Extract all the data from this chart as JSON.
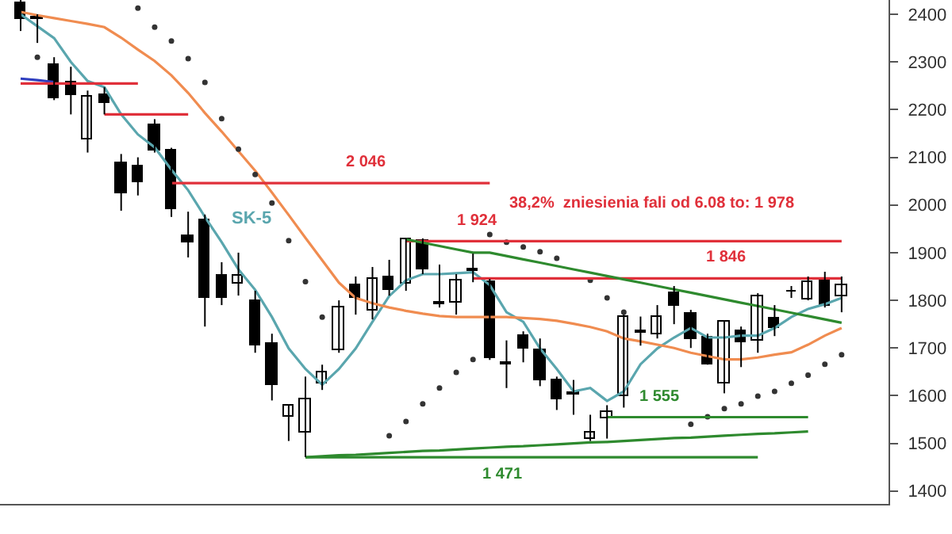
{
  "chart_data": {
    "type": "candlestick",
    "categories": [
      null,
      null,
      null,
      null,
      null,
      null,
      null,
      null,
      null,
      null,
      null,
      null,
      null,
      null,
      null,
      null,
      null,
      null,
      null,
      null,
      null,
      null,
      null,
      null,
      null,
      null,
      null,
      null,
      null,
      null,
      null,
      null,
      null,
      null,
      null,
      null,
      null,
      null,
      null,
      null,
      null,
      null,
      null,
      null,
      null,
      null,
      null,
      null,
      null,
      null
    ],
    "ohlc": [
      [
        2425,
        2430,
        2365,
        2390
      ],
      [
        2393,
        2400,
        2340,
        2390
      ],
      [
        2294,
        2310,
        2220,
        2224
      ],
      [
        2257,
        2290,
        2190,
        2230
      ],
      [
        2137,
        2240,
        2110,
        2227
      ],
      [
        2230,
        2247,
        2190,
        2214
      ],
      [
        2088,
        2107,
        1988,
        2025
      ],
      [
        2080,
        2100,
        2020,
        2048
      ],
      [
        2167,
        2180,
        2110,
        2114
      ],
      [
        2114,
        2120,
        1975,
        1991
      ],
      [
        1935,
        1986,
        1890,
        1922
      ],
      [
        1968,
        1980,
        1745,
        1805
      ],
      [
        1852,
        1880,
        1790,
        1805
      ],
      [
        1834,
        1900,
        1810,
        1852
      ],
      [
        1800,
        1820,
        1690,
        1706
      ],
      [
        1710,
        1730,
        1590,
        1623
      ],
      [
        1555,
        1580,
        1505,
        1580
      ],
      [
        1523,
        1640,
        1471,
        1593
      ],
      [
        1625,
        1665,
        1612,
        1650
      ],
      [
        1696,
        1800,
        1690,
        1786
      ],
      [
        1832,
        1850,
        1770,
        1805
      ],
      [
        1780,
        1870,
        1760,
        1845
      ],
      [
        1849,
        1885,
        1810,
        1822
      ],
      [
        1835,
        1930,
        1820,
        1928
      ],
      [
        1925,
        1930,
        1855,
        1865
      ],
      [
        1795,
        1875,
        1785,
        1792
      ],
      [
        1795,
        1855,
        1770,
        1842
      ],
      [
        1866,
        1898,
        1838,
        1862
      ],
      [
        1839,
        1845,
        1675,
        1679
      ],
      [
        1669,
        1716,
        1616,
        1666
      ],
      [
        1726,
        1735,
        1670,
        1699
      ],
      [
        1696,
        1720,
        1620,
        1633
      ],
      [
        1633,
        1640,
        1570,
        1593
      ],
      [
        1606,
        1633,
        1560,
        1603
      ],
      [
        1510,
        1560,
        1505,
        1523
      ],
      [
        1553,
        1580,
        1510,
        1566
      ],
      [
        1600,
        1770,
        1575,
        1766
      ],
      [
        1735,
        1766,
        1705,
        1732
      ],
      [
        1730,
        1790,
        1720,
        1766
      ],
      [
        1815,
        1830,
        1750,
        1789
      ],
      [
        1772,
        1780,
        1700,
        1719
      ],
      [
        1722,
        1730,
        1665,
        1666
      ],
      [
        1626,
        1756,
        1605,
        1756
      ],
      [
        1735,
        1745,
        1660,
        1712
      ],
      [
        1716,
        1815,
        1690,
        1808
      ],
      [
        1762,
        1790,
        1725,
        1742
      ],
      [
        1818,
        1830,
        1805,
        1820
      ],
      [
        1802,
        1850,
        1800,
        1839
      ],
      [
        1845,
        1860,
        1785,
        1789
      ],
      [
        1809,
        1850,
        1775,
        1832
      ]
    ],
    "series": [
      {
        "name": "SK-5",
        "type": "line",
        "color": "#5aa6ae",
        "values": [
          2400,
          2375,
          2350,
          2300,
          2260,
          2247,
          2190,
          2148,
          2121,
          2074,
          2031,
          1975,
          1922,
          1865,
          1822,
          1765,
          1699,
          1656,
          1623,
          1656,
          1699,
          1755,
          1809,
          1842,
          1855,
          1855,
          1857,
          1859,
          1832,
          1775,
          1755,
          1699,
          1656,
          1609,
          1616,
          1589,
          1609,
          1666,
          1699,
          1722,
          1742,
          1722,
          1722,
          1726,
          1726,
          1742,
          1765,
          1782,
          1792,
          1805
        ]
      },
      {
        "type": "line",
        "color": "#f08c50",
        "values": [
          2405,
          2398,
          2392,
          2386,
          2380,
          2373,
          2351,
          2326,
          2302,
          2272,
          2235,
          2193,
          2154,
          2113,
          2072,
          2026,
          1979,
          1931,
          1884,
          1837,
          1805,
          1794,
          1785,
          1778,
          1772,
          1767,
          1765,
          1765,
          1765,
          1765,
          1763,
          1761,
          1757,
          1751,
          1744,
          1735,
          1720,
          1714,
          1707,
          1700,
          1690,
          1683,
          1676,
          1676,
          1680,
          1686,
          1691,
          1707,
          1726,
          1742
        ]
      },
      {
        "type": "scatter",
        "marker": "circle",
        "color": "#333333",
        "values": [
          null,
          2310,
          null,
          null,
          null,
          null,
          null,
          2413,
          2373,
          2344,
          2307,
          2257,
          2181,
          2117,
          2064,
          2004,
          1925,
          1839,
          1765,
          null,
          null,
          null,
          1516,
          1546,
          1583,
          1616,
          1649,
          1676,
          1938,
          1922,
          1912,
          1902,
          1888,
          null,
          1842,
          1805,
          1775,
          null,
          null,
          null,
          1540,
          1556,
          1573,
          1583,
          1599,
          1609,
          1626,
          1643,
          1666,
          1686
        ]
      },
      {
        "type": "line",
        "color": "#2f3fc0",
        "values": [
          2265,
          2262,
          2258,
          null,
          null,
          null,
          null,
          null,
          null,
          null,
          null,
          null,
          null,
          null,
          null,
          null,
          null,
          null,
          null,
          null,
          null,
          null,
          null,
          null,
          null,
          null,
          null,
          null,
          null,
          null,
          null,
          null,
          null,
          null,
          null,
          null,
          null,
          null,
          null,
          null,
          null,
          null,
          null,
          null,
          null,
          null,
          null,
          null,
          null,
          null
        ]
      },
      {
        "type": "line",
        "color": "#e0303a",
        "values": [
          2255,
          2255,
          2255,
          2255,
          2255,
          2255,
          2255,
          2255,
          null,
          null,
          null,
          null,
          null,
          null,
          null,
          null,
          null,
          null,
          null,
          null,
          null,
          null,
          null,
          null,
          null,
          null,
          null,
          null,
          null,
          null,
          null,
          null,
          null,
          null,
          null,
          null,
          null,
          null,
          null,
          null,
          null,
          null,
          null,
          null,
          null,
          null,
          null,
          null,
          null,
          null
        ]
      },
      {
        "type": "line",
        "color": "#e0303a",
        "values": [
          null,
          null,
          null,
          null,
          null,
          2190,
          2190,
          2190,
          2190,
          2190,
          2190,
          null,
          null,
          null,
          null,
          null,
          null,
          null,
          null,
          null,
          null,
          null,
          null,
          null,
          null,
          null,
          null,
          null,
          null,
          null,
          null,
          null,
          null,
          null,
          null,
          null,
          null,
          null,
          null,
          null,
          null,
          null,
          null,
          null,
          null,
          null,
          null,
          null,
          null,
          null
        ]
      },
      {
        "type": "line",
        "color": "#e0303a",
        "values": [
          null,
          null,
          null,
          null,
          null,
          null,
          null,
          null,
          null,
          2046,
          2046,
          2046,
          2046,
          2046,
          2046,
          2046,
          2046,
          2046,
          2046,
          2046,
          2046,
          2046,
          2046,
          2046,
          2046,
          2046,
          2046,
          2046,
          2046,
          null,
          null,
          null,
          null,
          null,
          null,
          null,
          null,
          null,
          null,
          null,
          null,
          null,
          null,
          null,
          null,
          null,
          null,
          null,
          null,
          null
        ]
      },
      {
        "type": "line",
        "color": "#e0303a",
        "values": [
          null,
          null,
          null,
          null,
          null,
          null,
          null,
          null,
          null,
          null,
          null,
          null,
          null,
          null,
          null,
          null,
          null,
          null,
          null,
          null,
          null,
          null,
          null,
          1924,
          1924,
          1924,
          1924,
          1924,
          1924,
          1924,
          1924,
          1924,
          1924,
          1924,
          1924,
          1924,
          1924,
          1924,
          1924,
          1924,
          1924,
          1924,
          1924,
          1924,
          1924,
          1924,
          1924,
          1924,
          1924,
          1924
        ]
      },
      {
        "type": "line",
        "color": "#e0303a",
        "values": [
          null,
          null,
          null,
          null,
          null,
          null,
          null,
          null,
          null,
          null,
          null,
          null,
          null,
          null,
          null,
          null,
          null,
          null,
          null,
          null,
          null,
          null,
          null,
          null,
          null,
          null,
          null,
          1846,
          1846,
          1846,
          1846,
          1846,
          1846,
          1846,
          1846,
          1846,
          1846,
          1846,
          1846,
          1846,
          1846,
          1846,
          1846,
          1846,
          1846,
          1846,
          1846,
          1846,
          1846,
          1846
        ]
      },
      {
        "type": "line",
        "color": "#2e8a2e",
        "values": [
          null,
          null,
          null,
          null,
          null,
          null,
          null,
          null,
          null,
          null,
          null,
          null,
          null,
          null,
          null,
          null,
          null,
          null,
          null,
          null,
          null,
          null,
          null,
          1928,
          1921,
          1914,
          1907,
          1900,
          1900,
          1893,
          1886,
          1879,
          1872,
          1865,
          1858,
          1851,
          1844,
          1837,
          1830,
          1823,
          1816,
          1809,
          1802,
          1795,
          1788,
          1781,
          1774,
          1767,
          1760,
          1753
        ]
      },
      {
        "type": "line",
        "color": "#2e8a2e",
        "values": [
          null,
          null,
          null,
          null,
          null,
          null,
          null,
          null,
          null,
          null,
          null,
          null,
          null,
          null,
          null,
          null,
          null,
          1471,
          1471,
          1471,
          1471,
          1471,
          1471,
          1471,
          1471,
          1471,
          1471,
          1471,
          1471,
          1471,
          1471,
          1471,
          1471,
          1471,
          1471,
          1471,
          1471,
          1471,
          1471,
          1471,
          1471,
          1471,
          1471,
          1471,
          1471,
          null,
          null,
          null,
          null,
          null
        ]
      },
      {
        "type": "line",
        "color": "#2e8a2e",
        "values": [
          null,
          null,
          null,
          null,
          null,
          null,
          null,
          null,
          null,
          null,
          null,
          null,
          null,
          null,
          null,
          null,
          null,
          1471,
          1473,
          1475,
          1476,
          1478,
          1480,
          1482,
          1484,
          1485,
          1487,
          1489,
          1491,
          1493,
          1494,
          1496,
          1498,
          1500,
          1502,
          1503,
          1505,
          1507,
          1509,
          1511,
          1512,
          1514,
          1516,
          1518,
          1520,
          1521,
          1523,
          1525,
          null,
          null
        ]
      },
      {
        "type": "line",
        "color": "#2e8a2e",
        "values": [
          null,
          null,
          null,
          null,
          null,
          null,
          null,
          null,
          null,
          null,
          null,
          null,
          null,
          null,
          null,
          null,
          null,
          null,
          null,
          null,
          null,
          null,
          null,
          null,
          null,
          null,
          null,
          null,
          null,
          null,
          null,
          null,
          null,
          null,
          null,
          1555,
          1555,
          1555,
          1555,
          1555,
          1555,
          1555,
          1555,
          1555,
          1555,
          1555,
          1555,
          1555,
          null,
          null
        ]
      }
    ],
    "annotations": [
      {
        "text": "2 046",
        "y": 2046
      },
      "38,2%  zniesienia fali od 6.08 to: 1 978",
      {
        "text": "1 924",
        "y": 1924
      },
      {
        "text": "1 846",
        "y": 1846
      },
      {
        "text": "1 555",
        "y": 1555
      },
      {
        "text": "1 471",
        "y": 1471
      }
    ],
    "ylim": [
      1373,
      2430
    ],
    "yticks": [
      1400,
      1500,
      1600,
      1700,
      1800,
      1900,
      2000,
      2100,
      2200,
      2300,
      2400
    ],
    "tick_labels": "y"
  }
}
